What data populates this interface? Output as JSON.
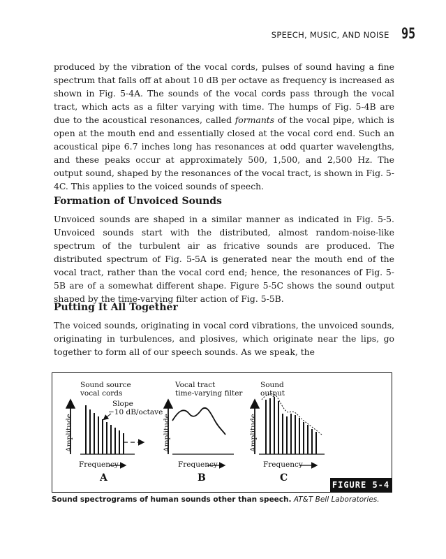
{
  "running_head": {
    "title": "SPEECH, MUSIC, AND NOISE",
    "page_number": "95"
  },
  "paragraph_1": {
    "before_italic": "produced by the vibration of the vocal cords, pulses of sound having a fine spectrum that falls off at about 10 dB per octave as frequency is increased as shown in Fig. 5-4A. The sounds of the vocal cords pass through the vocal tract, which acts as a filter varying with time. The humps of Fig. 5-4B are due to the acoustical resonances, called ",
    "italic": "formants",
    "after_italic": " of the vocal pipe, which is open at the mouth end and essentially closed at the vocal cord end. Such an acoustical pipe 6.7 inches long has resonances at odd quarter wavelengths, and these peaks occur at approximately 500, 1,500, and 2,500 Hz. The output sound, shaped by the resonances of the vocal tract, is shown in Fig. 5-4C. This applies to the voiced sounds of speech."
  },
  "heading_1": "Formation of Unvoiced Sounds",
  "paragraph_2": "Unvoiced sounds are shaped in a similar manner as indicated in Fig. 5-5. Unvoiced sounds start with the distributed, almost random-noise-like spectrum of the turbulent air as fricative sounds are produced. The distributed spectrum of Fig. 5-5A is generated near the mouth end of the vocal tract, rather than the vocal cord end; hence, the resonances of Fig. 5-5B are of a somewhat different shape. Figure 5-5C shows the sound output shaped by the time-varying filter action of Fig. 5-5B.",
  "heading_2": "Putting It All Together",
  "paragraph_3": "The voiced sounds, originating in vocal cord vibrations, the unvoiced sounds, originating in turbulences, and plosives, which originate near the lips, go together to form all of our speech sounds. As we speak, the",
  "figure": {
    "panels": [
      {
        "title_line1": "Sound source",
        "title_line2": "vocal cords",
        "letter": "A",
        "xlabel": "Frequency",
        "ylabel": "Amplitude"
      },
      {
        "title_line1": "Vocal tract",
        "title_line2": "time-varying filter",
        "letter": "B",
        "xlabel": "Frequency",
        "ylabel": "Amplitude"
      },
      {
        "title_line1": "Sound",
        "title_line2": "output",
        "letter": "C",
        "xlabel": "Frequency",
        "ylabel": "Amplitude"
      }
    ],
    "slope_line1": "Slope",
    "slope_line2": "−10 dB/octave",
    "label": "FIGURE 5-4"
  },
  "caption": {
    "bold": "Sound spectrograms of human sounds other than speech.",
    "italic": "AT&T Bell Laboratories."
  }
}
